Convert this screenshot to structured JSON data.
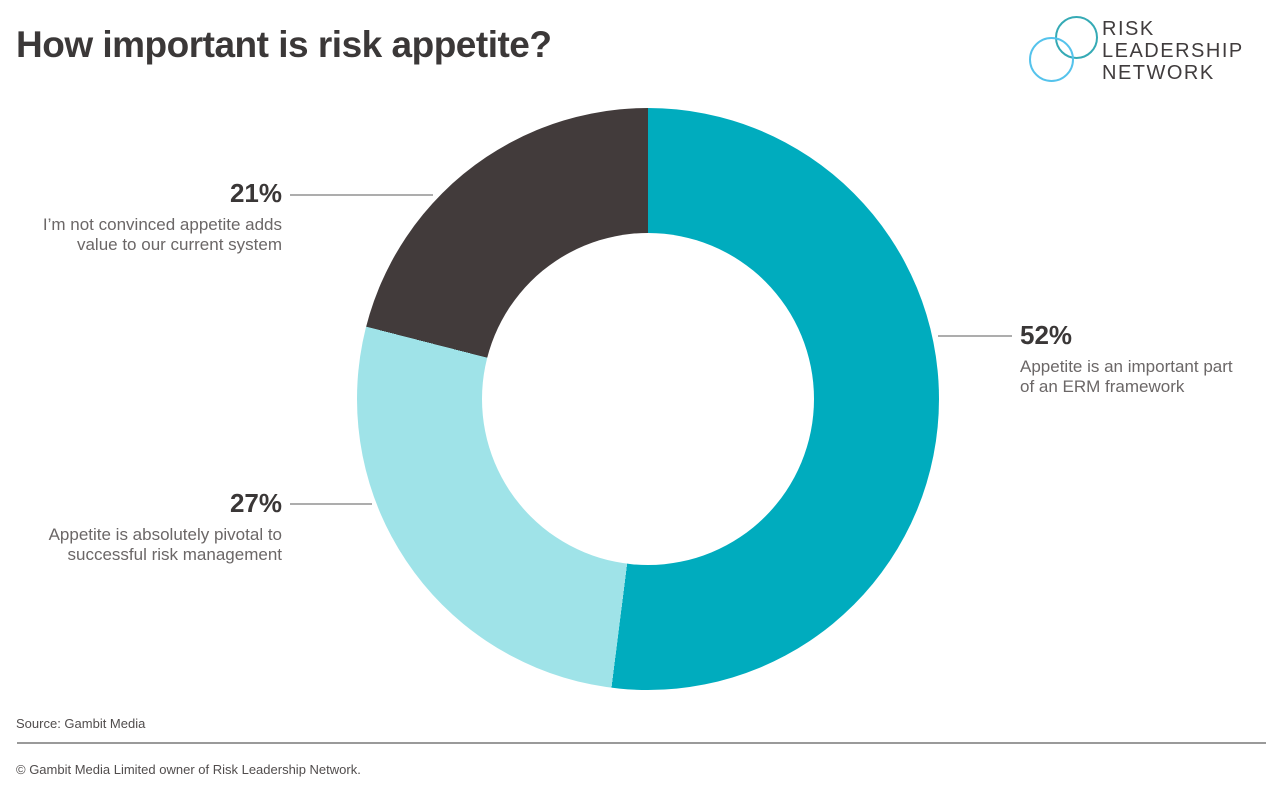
{
  "header": {
    "title": "How important is risk appetite?"
  },
  "logo": {
    "line1": "RISK",
    "line2": "LEADERSHIP",
    "line3": "NETWORK",
    "teal_circle_color": "#35aab5",
    "blue_circle_color": "#55c3ec"
  },
  "callouts": {
    "erm": {
      "pct": "52%",
      "line1": "Appetite is an important part",
      "line2": "of an ERM framework"
    },
    "pivotal": {
      "pct": "27%",
      "line1": "Appetite is absolutely pivotal to",
      "line2": "successful risk management"
    },
    "not_convinced": {
      "pct": "21%",
      "line1": "I’m not convinced appetite adds",
      "line2": "value to our current system"
    }
  },
  "footer": {
    "source": "Source: Gambit Media",
    "copyright": "© Gambit Media Limited owner of Risk Leadership Network."
  },
  "chart_data": {
    "type": "pie",
    "subtype": "donut",
    "title": "How important is risk appetite?",
    "start_angle_deg": 0,
    "direction": "clockwise",
    "inner_radius_ratio": 0.57,
    "legend_position": "none (direct callout labels)",
    "slices": [
      {
        "label": "Appetite is an important part of an ERM framework",
        "value": 52,
        "unit": "%",
        "color": "#00acbe"
      },
      {
        "label": "Appetite is absolutely pivotal to successful risk management",
        "value": 27,
        "unit": "%",
        "color": "#9fe3e8"
      },
      {
        "label": "I’m not convinced appetite adds value to our current system",
        "value": 21,
        "unit": "%",
        "color": "#423b3b"
      }
    ],
    "source": "Gambit Media"
  }
}
